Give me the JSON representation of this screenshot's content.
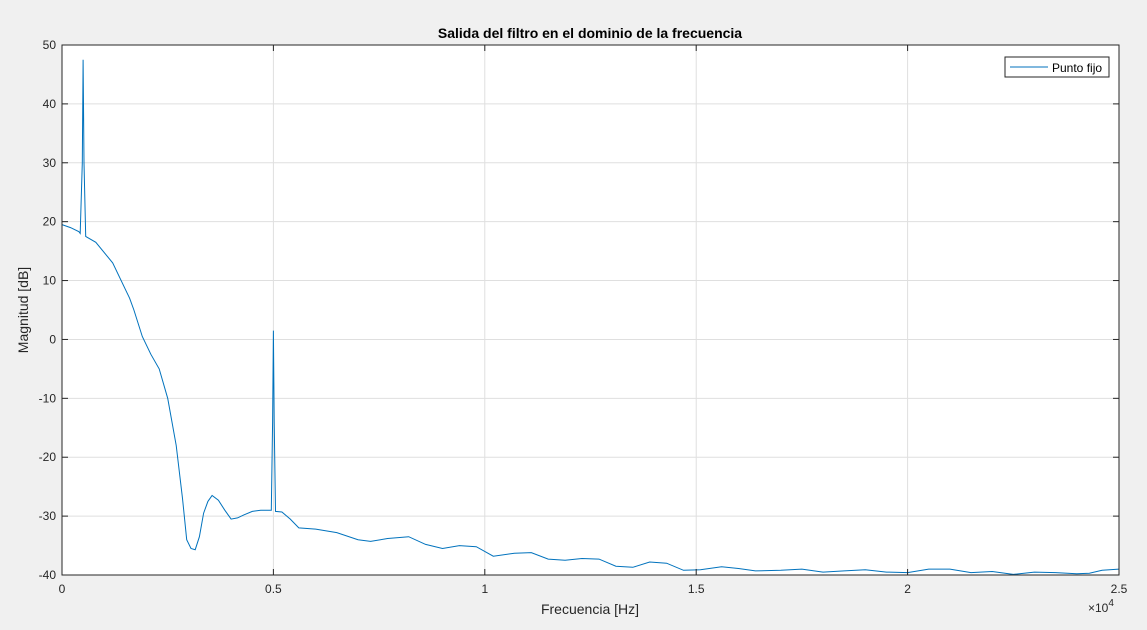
{
  "chart_data": {
    "type": "line",
    "title": "Salida del filtro en el dominio de la frecuencia",
    "xlabel": "Frecuencia [Hz]",
    "ylabel": "Magnitud [dB]",
    "xlim": [
      0,
      25000
    ],
    "ylim": [
      -40,
      50
    ],
    "xticks": [
      0,
      5000,
      10000,
      15000,
      20000,
      25000
    ],
    "xtick_labels": [
      "0",
      "0.5",
      "1",
      "1.5",
      "2",
      "2.5"
    ],
    "x_exponent_label": "×10",
    "x_exponent_power": "4",
    "yticks": [
      -40,
      -30,
      -20,
      -10,
      0,
      10,
      20,
      30,
      40,
      50
    ],
    "ytick_labels": [
      "-40",
      "-30",
      "-20",
      "-10",
      "0",
      "10",
      "20",
      "30",
      "40",
      "50"
    ],
    "grid": true,
    "legend_position": "top-right",
    "colors": {
      "line": "#0072bd",
      "grid": "#dfdfdf",
      "axes": "#262626",
      "figure_bg": "#f0f0f0",
      "axes_bg": "#ffffff"
    },
    "series": [
      {
        "name": "Punto fijo",
        "x": [
          0,
          200,
          400,
          430,
          480,
          500,
          520,
          560,
          800,
          1200,
          1600,
          1700,
          1900,
          2100,
          2300,
          2500,
          2700,
          2850,
          2950,
          3050,
          3150,
          3250,
          3350,
          3450,
          3550,
          3700,
          3850,
          4000,
          4150,
          4300,
          4500,
          4700,
          4950,
          4980,
          5000,
          5020,
          5050,
          5200,
          5400,
          5600,
          6000,
          6500,
          7000,
          7300,
          7700,
          8200,
          8600,
          9000,
          9400,
          9800,
          10200,
          10700,
          11100,
          11500,
          11900,
          12300,
          12700,
          13100,
          13500,
          13900,
          14300,
          14700,
          15100,
          15600,
          16000,
          16400,
          17000,
          17500,
          18000,
          18500,
          19000,
          19500,
          20000,
          20500,
          21000,
          21500,
          22000,
          22500,
          23000,
          23500,
          24000,
          24300,
          24600,
          25000
        ],
        "y": [
          19.5,
          19.0,
          18.3,
          18.0,
          30,
          47.5,
          30,
          17.5,
          16.5,
          13.0,
          7.0,
          5.0,
          0.5,
          -2.5,
          -5.0,
          -10.0,
          -18.0,
          -27.0,
          -34.0,
          -35.5,
          -35.7,
          -33.5,
          -29.5,
          -27.5,
          -26.5,
          -27.3,
          -29.0,
          -30.5,
          -30.3,
          -29.8,
          -29.2,
          -29.0,
          -29.0,
          -14.0,
          1.5,
          -14.0,
          -29.2,
          -29.3,
          -30.5,
          -32.0,
          -32.2,
          -32.8,
          -34.0,
          -34.3,
          -33.8,
          -33.5,
          -34.8,
          -35.5,
          -35.0,
          -35.2,
          -36.8,
          -36.3,
          -36.2,
          -37.3,
          -37.5,
          -37.2,
          -37.3,
          -38.5,
          -38.7,
          -37.8,
          -38.0,
          -39.2,
          -39.1,
          -38.6,
          -38.9,
          -39.3,
          -39.2,
          -39.0,
          -39.5,
          -39.3,
          -39.1,
          -39.5,
          -39.6,
          -39.0,
          -39.0,
          -39.6,
          -39.4,
          -39.9,
          -39.5,
          -39.6,
          -39.8,
          -39.7,
          -39.2,
          -39.0
        ]
      }
    ]
  }
}
